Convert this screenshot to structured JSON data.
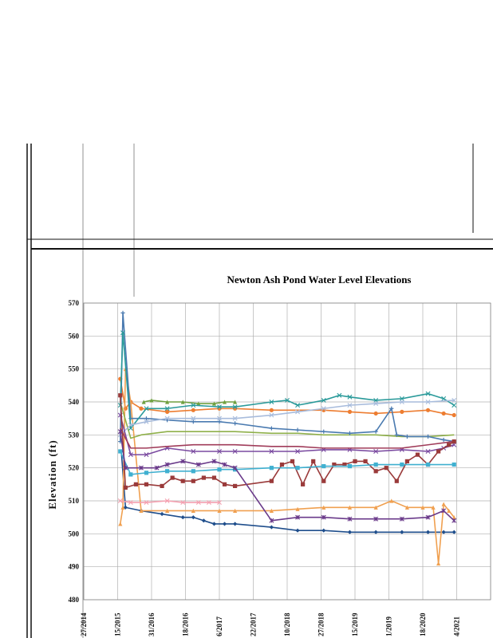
{
  "chart_data": {
    "type": "line",
    "title": "Newton Ash Pond Water Level Elevations",
    "ylabel": "Elevation (ft)",
    "ylim": [
      480,
      570
    ],
    "yticks": [
      480,
      490,
      500,
      510,
      520,
      530,
      540,
      550,
      560,
      570
    ],
    "xlim": [
      2014.4,
      2022.2
    ],
    "xtick_labels": [
      "27/2014",
      "15/2015",
      "31/2016",
      "18/2016",
      "6/2017",
      "22/2017",
      "10/2018",
      "27/2018",
      "15/2019",
      "1/2019",
      "18/2020",
      "4/2021",
      ""
    ],
    "grid": true,
    "series": [
      {
        "color": "#1f4e8c",
        "marker": "diamond",
        "x": [
          2015.12,
          2015.2,
          2015.5,
          2015.9,
          2016.3,
          2016.5,
          2016.7,
          2016.9,
          2017.1,
          2017.3,
          2018.0,
          2018.5,
          2019.0,
          2019.5,
          2020.0,
          2020.5,
          2021.0,
          2021.3,
          2021.5
        ],
        "values": [
          525,
          508,
          507,
          506,
          505,
          505,
          504,
          503,
          503,
          503,
          502,
          501,
          501,
          500.5,
          500.5,
          500.5,
          500.5,
          500.5,
          500.5
        ]
      },
      {
        "color": "#ed7d31",
        "marker": "circle",
        "x": [
          2015.1,
          2015.2,
          2015.3,
          2015.5,
          2016.0,
          2016.5,
          2017.0,
          2017.3,
          2018.0,
          2019.0,
          2019.5,
          2020.0,
          2020.5,
          2021.0,
          2021.3,
          2021.5
        ],
        "values": [
          547,
          538,
          540,
          538,
          537,
          537.5,
          538,
          538,
          537.5,
          537.5,
          537,
          536.5,
          537,
          537.5,
          536.5,
          536
        ]
      },
      {
        "color": "#f0a050",
        "marker": "triangle",
        "x": [
          2015.1,
          2015.15,
          2015.2,
          2015.3,
          2015.5,
          2016.0,
          2016.5,
          2017.0,
          2017.3,
          2018.0,
          2018.5,
          2019.0,
          2019.5,
          2020.0,
          2020.3,
          2020.6,
          2020.9,
          2021.1,
          2021.2,
          2021.3,
          2021.4,
          2021.5
        ],
        "values": [
          503,
          508,
          550,
          540,
          507,
          507,
          507,
          507,
          507,
          507,
          507.5,
          508,
          508,
          508,
          510,
          508,
          508,
          508,
          491,
          509,
          507,
          505
        ]
      },
      {
        "color": "#8fb04a",
        "marker": "none",
        "x": [
          2015.1,
          2015.3,
          2015.5,
          2016.0,
          2016.5,
          2017.0,
          2017.3,
          2018.0,
          2018.5,
          2019.0,
          2019.5,
          2020.0,
          2020.5,
          2021.0,
          2021.5
        ],
        "values": [
          540,
          529,
          530,
          531,
          531,
          531,
          531,
          530.5,
          530.5,
          530,
          530,
          530,
          529.5,
          529.5,
          530
        ]
      },
      {
        "color": "#70a040",
        "marker": "triangle",
        "x": [
          2015.55,
          2015.7,
          2016.0,
          2016.3,
          2016.6,
          2016.9,
          2017.1,
          2017.3
        ],
        "values": [
          540,
          540.5,
          540,
          540,
          539.5,
          539.5,
          540,
          540
        ]
      },
      {
        "color": "#4a7ab0",
        "marker": "plus",
        "x": [
          2015.1,
          2015.15,
          2015.3,
          2015.6,
          2016.0,
          2016.5,
          2017.0,
          2017.3,
          2018.0,
          2018.5,
          2019.0,
          2019.5,
          2020.0,
          2020.3,
          2020.4,
          2020.6,
          2021.0,
          2021.3,
          2021.5
        ],
        "values": [
          528,
          567,
          535,
          535,
          534.5,
          534,
          534,
          533.5,
          532,
          531.5,
          531,
          530.5,
          531,
          538,
          530,
          529.5,
          529.5,
          528.5,
          528
        ]
      },
      {
        "color": "#2a9a9a",
        "marker": "x",
        "x": [
          2015.1,
          2015.15,
          2015.3,
          2015.6,
          2016.0,
          2016.5,
          2017.0,
          2017.3,
          2018.0,
          2018.3,
          2018.5,
          2019.0,
          2019.3,
          2019.5,
          2020.0,
          2020.5,
          2021.0,
          2021.3,
          2021.5
        ],
        "values": [
          539,
          561,
          532,
          538,
          538,
          539,
          538.5,
          538.5,
          540,
          540.5,
          539,
          540.5,
          542,
          541.5,
          540.5,
          541,
          542.5,
          541,
          539
        ]
      },
      {
        "color": "#a8bcdc",
        "marker": "x",
        "x": [
          2015.1,
          2015.3,
          2015.6,
          2016.0,
          2016.5,
          2017.0,
          2017.3,
          2018.0,
          2018.5,
          2019.0,
          2019.5,
          2020.0,
          2020.5,
          2021.0,
          2021.5
        ],
        "values": [
          530,
          533,
          534,
          535,
          535,
          535,
          535,
          536,
          537,
          538,
          539,
          539.5,
          540,
          540,
          540.5
        ]
      },
      {
        "color": "#7a4aa0",
        "marker": "x",
        "x": [
          2015.1,
          2015.3,
          2015.6,
          2016.0,
          2016.5,
          2017.0,
          2017.3,
          2018.0,
          2018.5,
          2019.0,
          2019.5,
          2020.0,
          2020.5,
          2021.0,
          2021.3,
          2021.5
        ],
        "values": [
          536,
          524,
          524,
          526,
          525,
          525,
          525,
          525,
          525,
          525.5,
          525.5,
          525,
          525.5,
          525,
          526,
          527
        ]
      },
      {
        "color": "#a03c5a",
        "marker": "none",
        "x": [
          2015.1,
          2015.3,
          2015.6,
          2016.0,
          2016.5,
          2017.0,
          2017.3,
          2018.0,
          2018.5,
          2019.0,
          2019.5,
          2020.0,
          2020.5,
          2021.0,
          2021.5
        ],
        "values": [
          532,
          526,
          526,
          526.5,
          527,
          527,
          527,
          526.5,
          526.5,
          526,
          526,
          526,
          526,
          527,
          528
        ]
      },
      {
        "color": "#9a3a3a",
        "marker": "square",
        "x": [
          2015.1,
          2015.2,
          2015.4,
          2015.6,
          2015.9,
          2016.1,
          2016.3,
          2016.5,
          2016.7,
          2016.9,
          2017.1,
          2017.3,
          2018.0,
          2018.2,
          2018.4,
          2018.6,
          2018.8,
          2019.0,
          2019.2,
          2019.4,
          2019.6,
          2019.8,
          2020.0,
          2020.2,
          2020.4,
          2020.6,
          2020.8,
          2021.0,
          2021.2,
          2021.4,
          2021.5
        ],
        "values": [
          542,
          514,
          515,
          515,
          514.5,
          517,
          516,
          516,
          517,
          517,
          515,
          514.5,
          516,
          521,
          522,
          515,
          522,
          516,
          521,
          521,
          522,
          522,
          519,
          520,
          516,
          522,
          524,
          521,
          525,
          527,
          528
        ]
      },
      {
        "color": "#40b0d0",
        "marker": "square",
        "x": [
          2015.1,
          2015.3,
          2015.6,
          2016.0,
          2016.5,
          2017.0,
          2017.3,
          2018.0,
          2018.5,
          2019.0,
          2019.5,
          2020.0,
          2020.5,
          2021.0,
          2021.5
        ],
        "values": [
          525,
          518,
          518.5,
          519,
          519,
          519.5,
          519.5,
          520,
          520,
          520.5,
          520.5,
          521,
          521,
          521,
          521
        ]
      },
      {
        "color": "#6a3a8a",
        "marker": "star",
        "x": [
          2015.1,
          2015.2,
          2015.5,
          2015.8,
          2016.0,
          2016.3,
          2016.6,
          2016.9,
          2017.1,
          2017.3,
          2018.0,
          2018.5,
          2019.0,
          2019.5,
          2020.0,
          2020.5,
          2021.0,
          2021.3,
          2021.5
        ],
        "values": [
          531,
          520,
          520,
          520,
          521,
          522,
          521,
          522,
          521,
          520,
          504,
          505,
          505,
          504.5,
          504.5,
          504.5,
          505,
          507,
          504
        ]
      },
      {
        "color": "#f4a0b0",
        "marker": "x",
        "x": [
          2015.1,
          2015.3,
          2015.6,
          2016.0,
          2016.3,
          2016.6,
          2016.8,
          2017.0
        ],
        "values": [
          510,
          509.5,
          509.5,
          510,
          509.5,
          509.5,
          509.5,
          509.5
        ]
      }
    ]
  }
}
